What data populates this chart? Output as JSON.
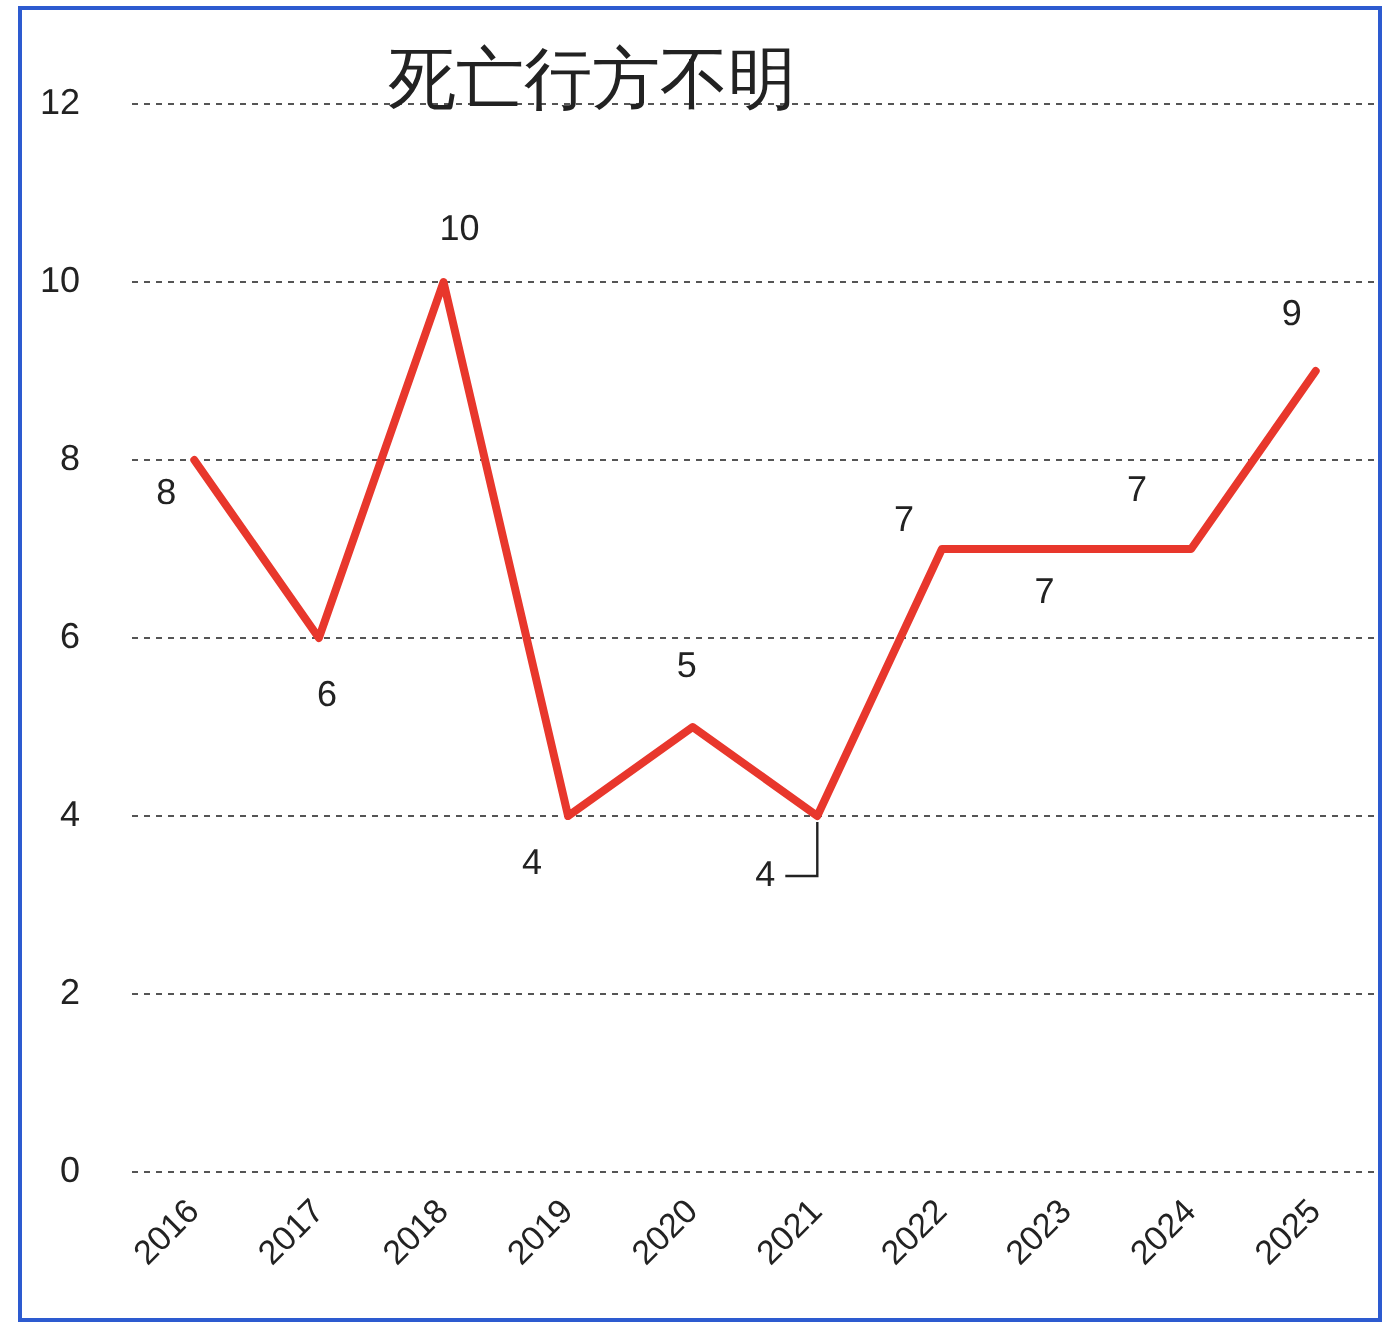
{
  "chart_data": {
    "type": "line",
    "title": "死亡行方不明",
    "categories": [
      "2016",
      "2017",
      "2018",
      "2019",
      "2020",
      "2021",
      "2022",
      "2023",
      "2024",
      "2025"
    ],
    "series": [
      {
        "color": "#e8372c",
        "values": [
          8,
          6,
          10,
          4,
          5,
          4,
          7,
          7,
          7,
          9
        ]
      }
    ],
    "ylim": [
      0,
      12
    ],
    "yticks": [
      0,
      2,
      4,
      6,
      8,
      10,
      12
    ],
    "grid": "y",
    "legend": false,
    "marker": "none",
    "line_style": "solid",
    "data_labels": true
  }
}
